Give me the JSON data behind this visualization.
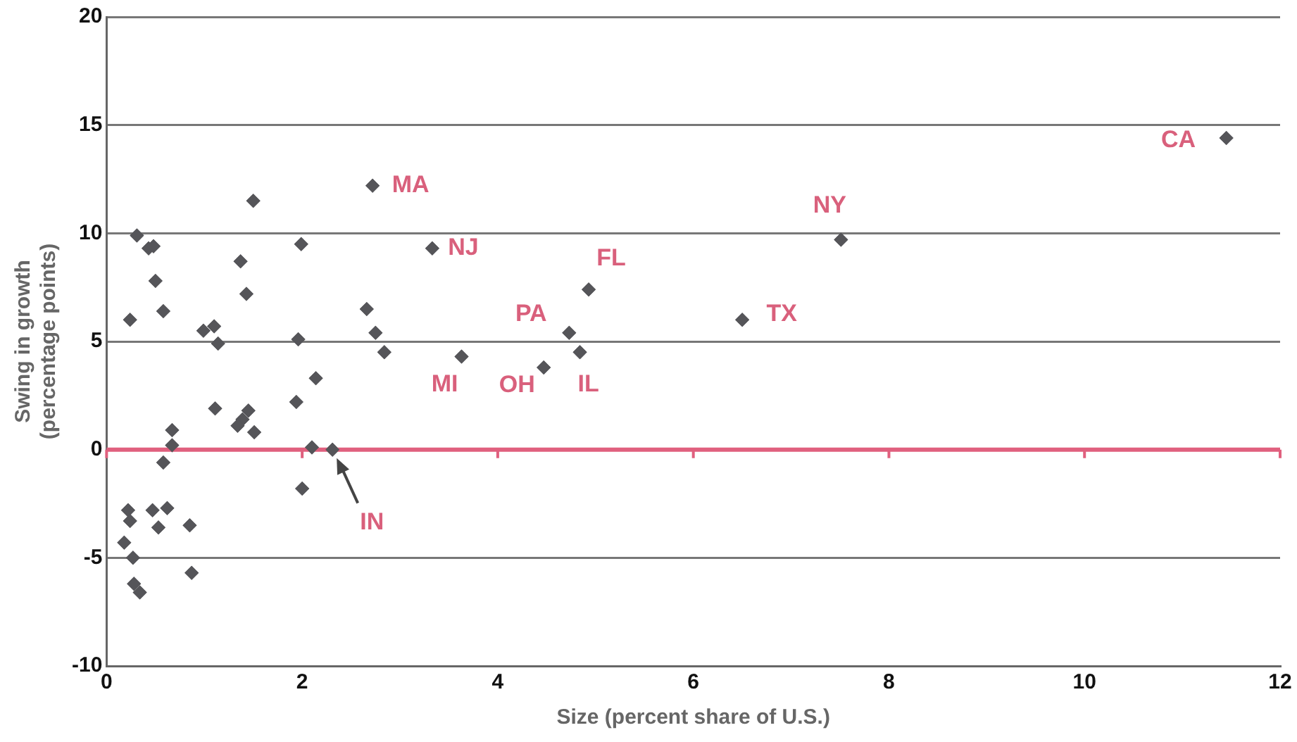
{
  "chart_data": {
    "type": "scatter",
    "xlabel": "Size (percent share of U.S.)",
    "ylabel": "Swing in growth\n(percentage points)",
    "xlim": [
      0,
      12
    ],
    "xticks": [
      0,
      2,
      4,
      6,
      8,
      10,
      12
    ],
    "ylim": [
      -10,
      20
    ],
    "yticks": [
      -10,
      -5,
      0,
      5,
      10,
      15,
      20
    ],
    "grid": "y",
    "legend": false,
    "marker": "diamond",
    "ref_lines": [
      {
        "axis": "y",
        "value": 0,
        "color": "#e0607e"
      }
    ],
    "series": [
      {
        "color": "#555559",
        "x": [
          1.5,
          2.72,
          0.31,
          0.43,
          0.48,
          1.99,
          1.37,
          0.5,
          1.43,
          0.58,
          0.24,
          2.66,
          0.99,
          1.1,
          1.14,
          1.96,
          2.75,
          2.84,
          2.14,
          1.94,
          1.11,
          1.45,
          1.39,
          1.34,
          1.51,
          0.67,
          0.67,
          0.58,
          2.1,
          2.31,
          2.0,
          0.22,
          0.24,
          0.47,
          0.62,
          0.53,
          0.85,
          0.18,
          0.27,
          0.87,
          0.28,
          0.34,
          3.33,
          3.63,
          4.47,
          4.73,
          4.84,
          4.93,
          6.5,
          7.51,
          11.45
        ],
        "values": [
          11.5,
          12.2,
          9.9,
          9.3,
          9.4,
          9.5,
          8.7,
          7.8,
          7.2,
          6.4,
          6.0,
          6.5,
          5.5,
          5.7,
          4.9,
          5.1,
          5.4,
          4.5,
          3.3,
          2.2,
          1.9,
          1.8,
          1.4,
          1.1,
          0.8,
          0.9,
          0.2,
          -0.6,
          0.1,
          0,
          -1.8,
          -2.8,
          -3.3,
          -2.8,
          -2.7,
          -3.6,
          -3.5,
          -4.3,
          -5.0,
          -5.7,
          -6.2,
          -6.6,
          9.3,
          4.3,
          3.8,
          5.4,
          4.5,
          7.4,
          6.0,
          9.7,
          14.4
        ]
      }
    ],
    "annotations": [
      {
        "text": "MA",
        "x": 2.72,
        "y": 12.2
      },
      {
        "text": "NJ",
        "x": 3.33,
        "y": 9.3
      },
      {
        "text": "FL",
        "x": 4.93,
        "y": 7.4
      },
      {
        "text": "PA",
        "x": 4.73,
        "y": 5.4
      },
      {
        "text": "MI",
        "x": 3.63,
        "y": 4.3
      },
      {
        "text": "OH",
        "x": 4.47,
        "y": 3.8
      },
      {
        "text": "IL",
        "x": 4.84,
        "y": 4.5
      },
      {
        "text": "TX",
        "x": 6.5,
        "y": 6.0
      },
      {
        "text": "NY",
        "x": 7.51,
        "y": 9.7
      },
      {
        "text": "CA",
        "x": 11.45,
        "y": 14.4
      },
      {
        "text": "IN",
        "x": 2.31,
        "y": 0
      }
    ]
  }
}
